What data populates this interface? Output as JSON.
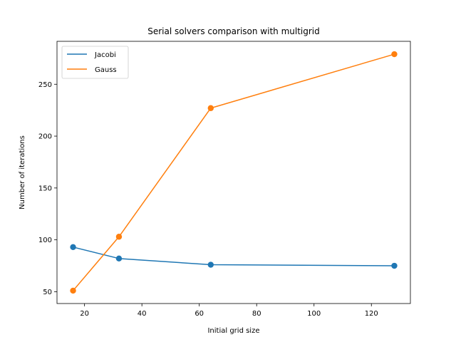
{
  "chart_data": {
    "type": "line",
    "title": "Serial solvers comparison with multigrid",
    "xlabel": "Initial grid size",
    "ylabel": "Number of iterations",
    "x": [
      16,
      32,
      64,
      128
    ],
    "series": [
      {
        "name": "Jacobi",
        "color": "#1f77b4",
        "values": [
          93,
          82,
          76,
          75
        ]
      },
      {
        "name": "Gauss",
        "color": "#ff7f0e",
        "values": [
          51,
          103,
          227,
          279
        ]
      }
    ],
    "xlim": [
      10.4,
      133.6
    ],
    "ylim": [
      38.6,
      291.4
    ],
    "xticks": [
      20,
      40,
      60,
      80,
      100,
      120
    ],
    "yticks": [
      50,
      100,
      150,
      200,
      250
    ],
    "markers": "circle",
    "legend_position": "upper left",
    "grid": false
  }
}
